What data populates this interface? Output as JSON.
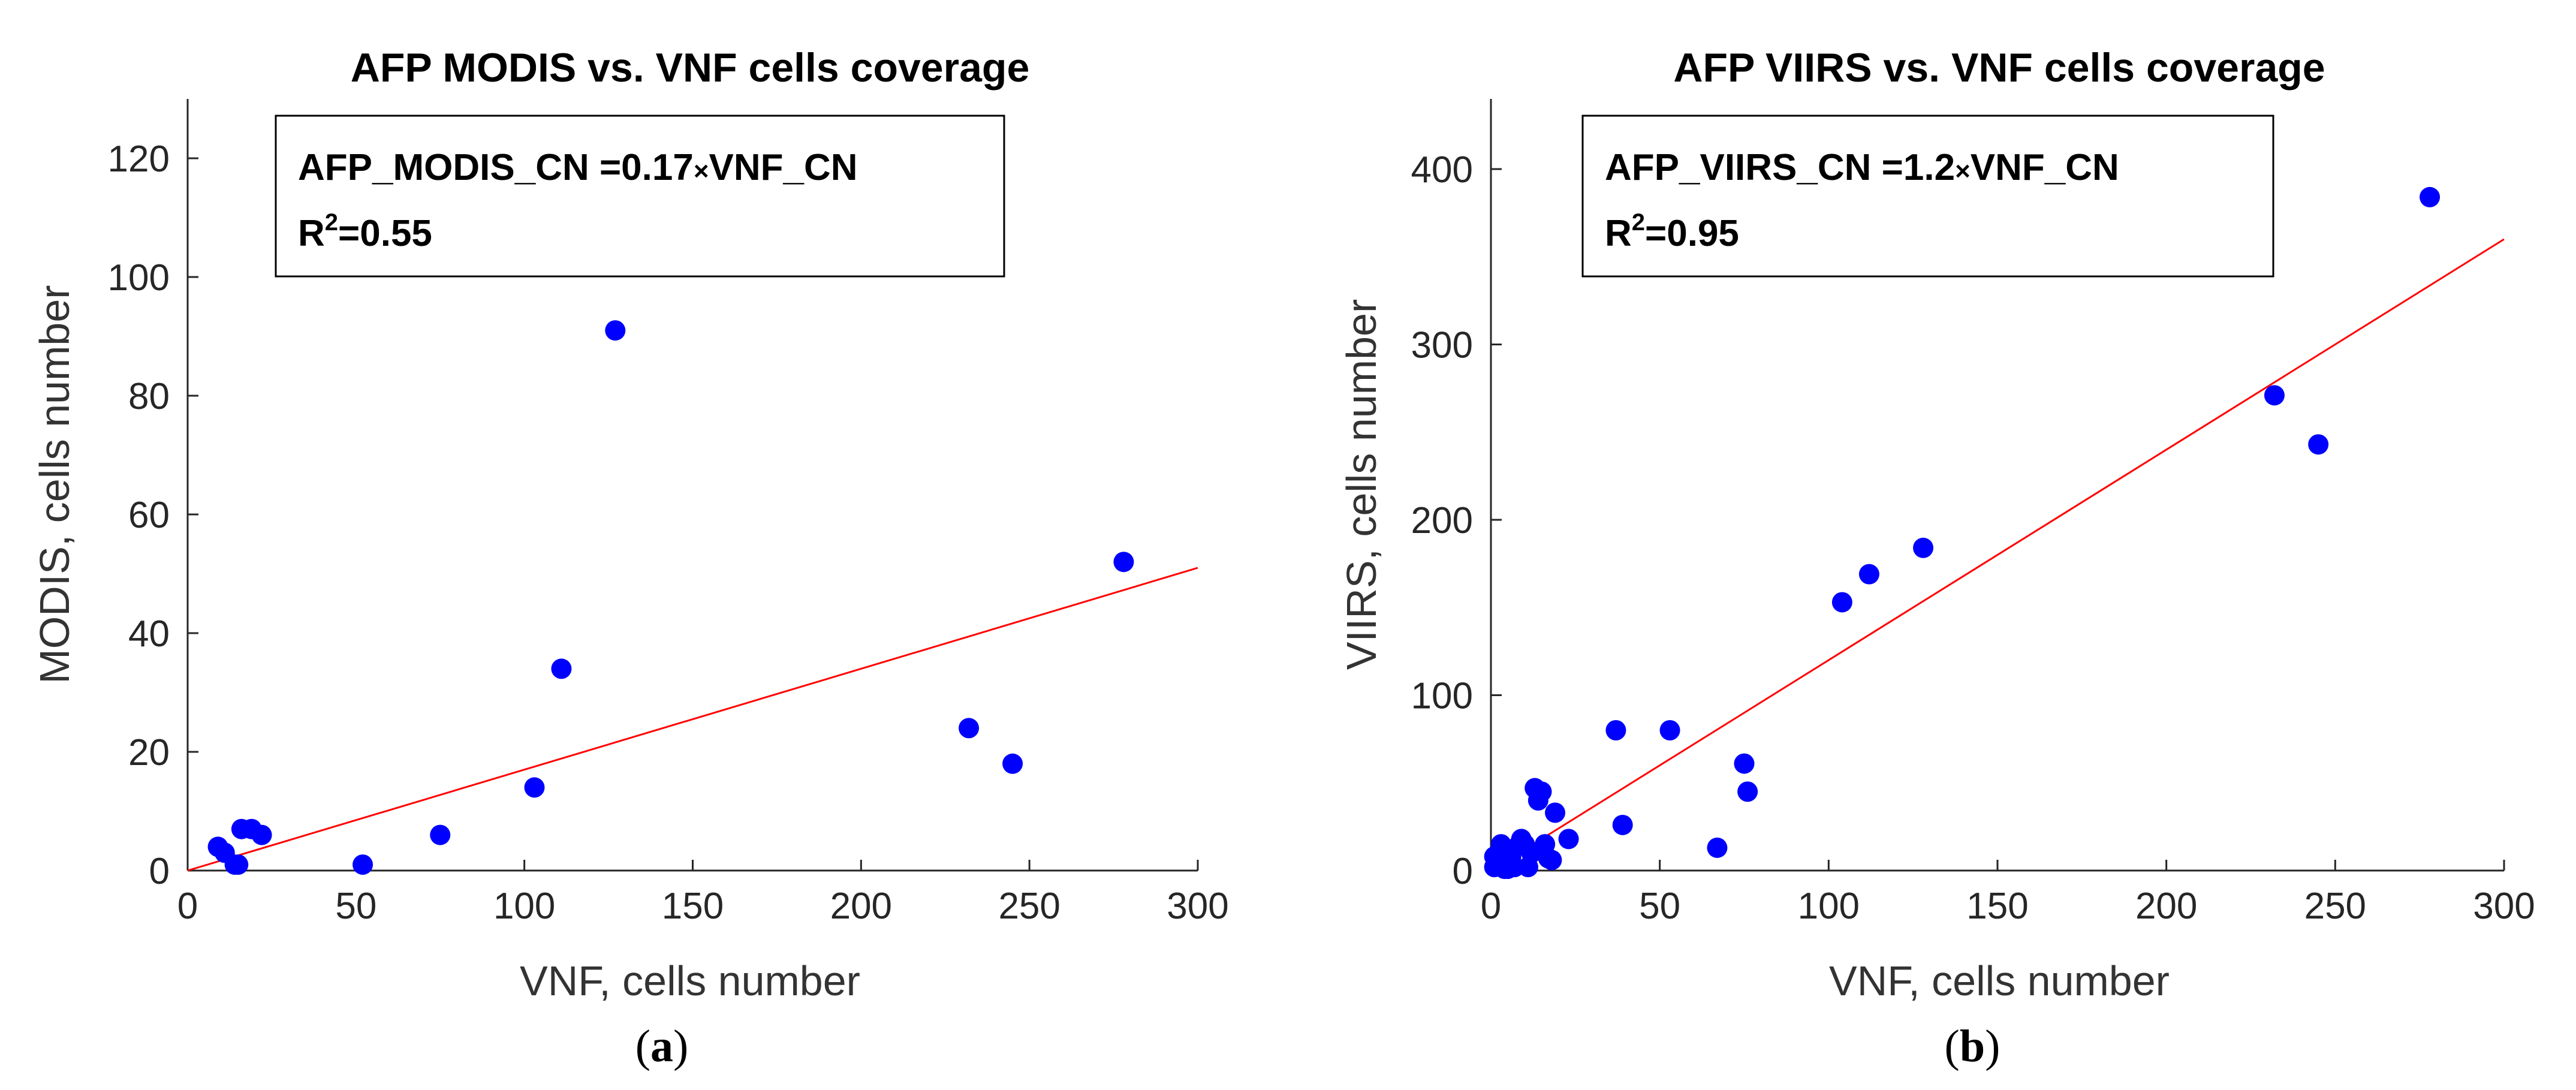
{
  "chart_data": [
    {
      "type": "scatter",
      "title": "AFP MODIS vs. VNF cells coverage",
      "xlabel": "VNF, cells number",
      "ylabel": "MODIS, cells number",
      "xlim": [
        0,
        300
      ],
      "ylim": [
        0,
        130
      ],
      "xticks": [
        "0",
        "50",
        "100",
        "150",
        "200",
        "250",
        "300"
      ],
      "yticks": [
        "0",
        "20",
        "40",
        "60",
        "80",
        "100",
        "120"
      ],
      "grid": false,
      "equation": {
        "lhs": "AFP_MODIS_CN =0.17",
        "times": "×",
        "rhs": "VNF_CN",
        "r2_prefix": "R",
        "r2_exp": "2",
        "r2_value": "=0.55"
      },
      "fit": {
        "slope": 0.17,
        "x0": 0,
        "x1": 300
      },
      "panel_label": {
        "open": "(",
        "letter": "a",
        "close": ")"
      },
      "colors": {
        "points": "#0000ff",
        "fit": "#ff0000"
      },
      "points": [
        [
          9,
          4
        ],
        [
          11,
          3
        ],
        [
          14,
          1
        ],
        [
          15,
          1
        ],
        [
          16,
          7
        ],
        [
          19,
          7
        ],
        [
          22,
          6
        ],
        [
          52,
          1
        ],
        [
          75,
          6
        ],
        [
          103,
          14
        ],
        [
          111,
          34
        ],
        [
          127,
          91
        ],
        [
          232,
          24
        ],
        [
          245,
          18
        ],
        [
          278,
          52
        ]
      ]
    },
    {
      "type": "scatter",
      "title": "AFP VIIRS vs. VNF cells coverage",
      "xlabel": "VNF, cells number",
      "ylabel": "VIIRS, cells number",
      "xlim": [
        0,
        300
      ],
      "ylim": [
        0,
        440
      ],
      "xticks": [
        "0",
        "50",
        "100",
        "150",
        "200",
        "250",
        "300"
      ],
      "yticks": [
        "0",
        "100",
        "200",
        "300",
        "400"
      ],
      "grid": false,
      "equation": {
        "lhs": "AFP_VIIRS_CN =1.2",
        "times": "×",
        "rhs": "VNF_CN",
        "r2_prefix": "R",
        "r2_exp": "2",
        "r2_value": "=0.95"
      },
      "fit": {
        "slope": 1.2,
        "x0": 0,
        "x1": 300
      },
      "panel_label": {
        "open": "(",
        "letter": "b",
        "close": ")"
      },
      "colors": {
        "points": "#0000ff",
        "fit": "#ff0000"
      },
      "points": [
        [
          1,
          2
        ],
        [
          1,
          8
        ],
        [
          2,
          4
        ],
        [
          3,
          15
        ],
        [
          4,
          1
        ],
        [
          5,
          1
        ],
        [
          6,
          8
        ],
        [
          7,
          2
        ],
        [
          8,
          14
        ],
        [
          9,
          18
        ],
        [
          10,
          15
        ],
        [
          11,
          2
        ],
        [
          12,
          10
        ],
        [
          13,
          47
        ],
        [
          14,
          40
        ],
        [
          15,
          45
        ],
        [
          16,
          15
        ],
        [
          17,
          7
        ],
        [
          18,
          6
        ],
        [
          19,
          33
        ],
        [
          23,
          18
        ],
        [
          37,
          80
        ],
        [
          39,
          26
        ],
        [
          53,
          80
        ],
        [
          67,
          13
        ],
        [
          75,
          61
        ],
        [
          76,
          45
        ],
        [
          104,
          153
        ],
        [
          112,
          169
        ],
        [
          128,
          184
        ],
        [
          232,
          271
        ],
        [
          245,
          243
        ],
        [
          278,
          384
        ]
      ]
    }
  ]
}
